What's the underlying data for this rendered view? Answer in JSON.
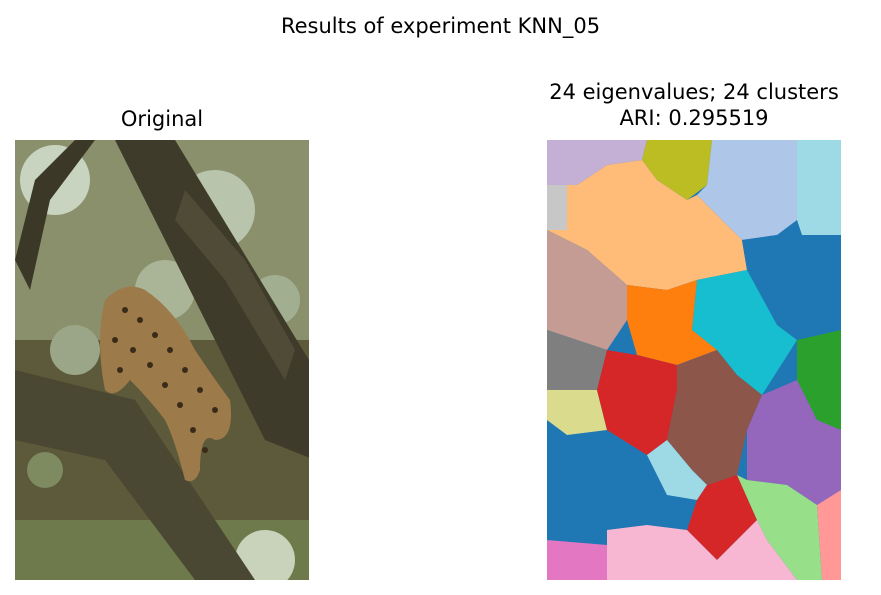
{
  "figure": {
    "title": "Results of experiment KNN_05"
  },
  "left_panel": {
    "title": "Original",
    "image_description": "leopard in a tree"
  },
  "right_panel": {
    "title_line1": "24 eigenvalues; 24 clusters",
    "title_line2": "ARI: 0.295519",
    "segment_palette": [
      "#c5b0d5",
      "#bcbd22",
      "#aec7e8",
      "#9edae5",
      "#ffbb78",
      "#c49c94",
      "#1f77b4",
      "#17becf",
      "#ff7f0e",
      "#7f7f7f",
      "#2ca02c",
      "#d62728",
      "#8c564b",
      "#dbdb8d",
      "#9467bd",
      "#98df8a",
      "#e377c2",
      "#f7b6d2",
      "#ff9896",
      "#c7c7c7"
    ]
  }
}
